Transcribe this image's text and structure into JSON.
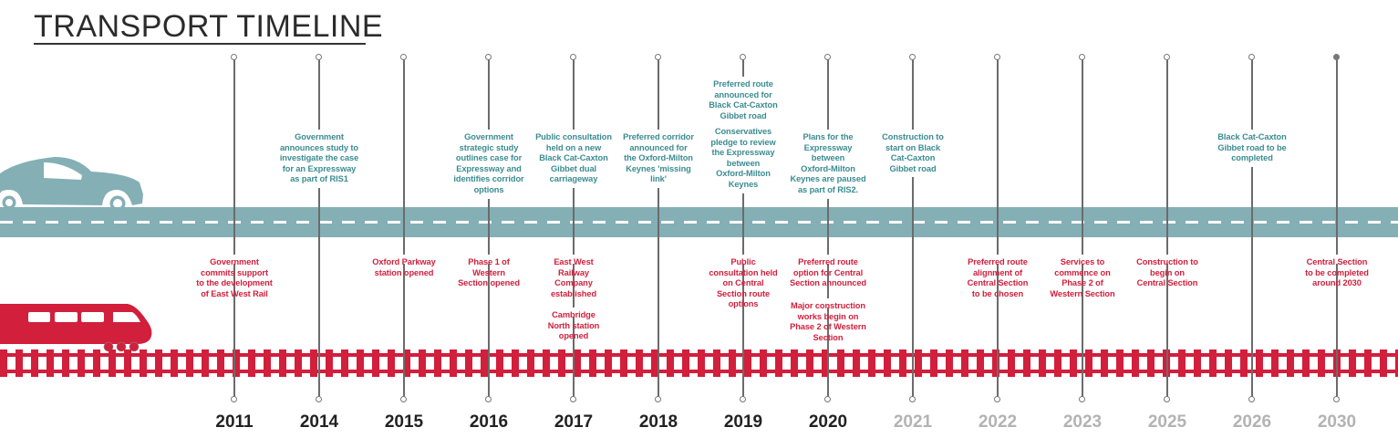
{
  "title": "TRANSPORT TIMELINE",
  "colors": {
    "road": "#84afb5",
    "road_text": "#3b8c91",
    "rail": "#d11f3c",
    "future_year": "#b3b3b3"
  },
  "icons": {
    "road": "car-icon",
    "rail": "train-icon"
  },
  "columns": [
    {
      "year": "2011",
      "muted": false,
      "road": [],
      "rail": [
        "Government\ncommits support\nto the development\nof East West Rail"
      ]
    },
    {
      "year": "2014",
      "muted": false,
      "road": [
        "Government\nannounces study to\ninvestigate the case\nfor an Expressway\nas part of RIS1"
      ],
      "rail": []
    },
    {
      "year": "2015",
      "muted": false,
      "road": [],
      "rail": [
        "Oxford Parkway\nstation opened"
      ]
    },
    {
      "year": "2016",
      "muted": false,
      "road": [
        "Government\nstrategic study\noutlines case for\nExpressway and\nidentifies corridor\noptions"
      ],
      "rail": [
        "Phase 1 of\nWestern\nSection opened"
      ]
    },
    {
      "year": "2017",
      "muted": false,
      "road": [
        "Public consultation\nheld on a new\nBlack Cat-Caxton\nGibbet dual\ncarriageway"
      ],
      "rail": [
        "East West\nRailway\nCompany\nestablished",
        "Cambridge\nNorth station\nopened"
      ]
    },
    {
      "year": "2018",
      "muted": false,
      "road": [
        "Preferred corridor\nannounced for\nthe Oxford-Milton\nKeynes 'missing\nlink'"
      ],
      "rail": []
    },
    {
      "year": "2019",
      "muted": false,
      "road": [
        "Preferred route\nannounced for\nBlack Cat-Caxton\nGibbet road",
        "Conservatives\npledge to review\nthe Expressway\nbetween\nOxford-Milton\nKeynes"
      ],
      "rail": [
        "Public\nconsultation held\non Central\nSection route\noptions"
      ]
    },
    {
      "year": "2020",
      "muted": false,
      "road": [
        "Plans for the\nExpressway\nbetween\nOxford-Milton\nKeynes are paused\nas part of RIS2."
      ],
      "rail": [
        "Preferred route\noption for Central\nSection announced",
        "Major construction\nworks begin on\nPhase 2 of Western\nSection"
      ]
    },
    {
      "year": "2021",
      "muted": true,
      "road": [
        "Construction to\nstart on Black\nCat-Caxton\nGibbet road"
      ],
      "rail": []
    },
    {
      "year": "2022",
      "muted": true,
      "road": [],
      "rail": [
        "Preferred route\nalignment of\nCentral Section\nto be chosen"
      ]
    },
    {
      "year": "2023",
      "muted": true,
      "road": [],
      "rail": [
        "Services to\ncommence on\nPhase 2 of\nWestern Section"
      ]
    },
    {
      "year": "2025",
      "muted": true,
      "road": [],
      "rail": [
        "Construction to\nbegin on\nCentral Section"
      ]
    },
    {
      "year": "2026",
      "muted": true,
      "road": [
        "Black Cat-Caxton\nGibbet road to be\ncompleted"
      ],
      "rail": []
    },
    {
      "year": "2030",
      "muted": true,
      "road": [],
      "rail": [
        "Central Section\nto be completed\naround 2030"
      ]
    }
  ]
}
